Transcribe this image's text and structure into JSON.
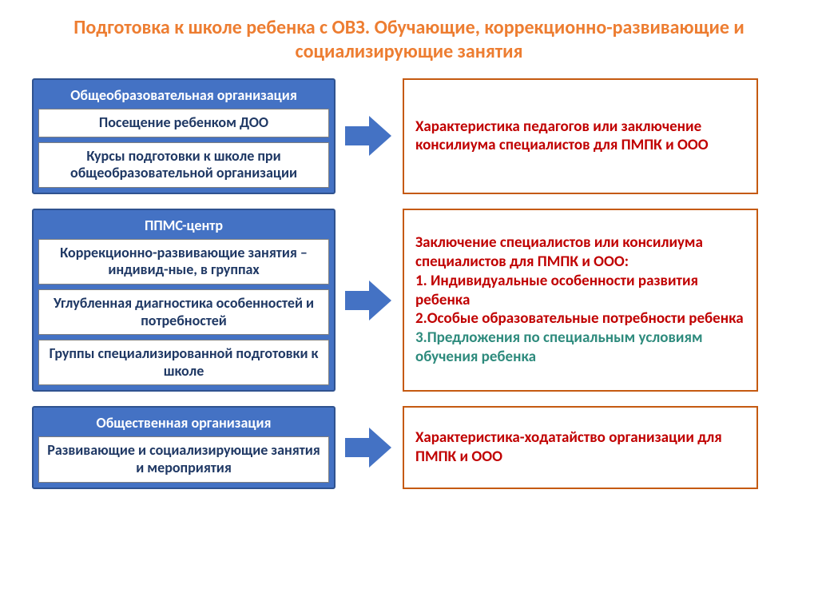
{
  "title": "Подготовка к школе ребенка с ОВЗ. Обучающие, коррекционно-развивающие и социализирующие занятия",
  "title_color": "#ed7d31",
  "title_fontsize": 24,
  "colors": {
    "left_block_bg": "#4472c4",
    "left_block_border": "#2f528f",
    "white_box_text": "#1f3864",
    "arrow_fill": "#4472c4",
    "right_border": "#c55a11",
    "right_text": "#c00000",
    "right_green_text": "#2e8b7d"
  },
  "header_fontsize": 18,
  "box_fontsize": 18,
  "right_fontsize": 19,
  "rows": [
    {
      "header": "Общеобразовательная организация",
      "boxes": [
        "Посещение ребенком ДОО",
        "Курсы подготовки к школе при общеобразовательной организации"
      ],
      "right": {
        "paragraphs": [
          {
            "text": "Характеристика педагогов или заключение консилиума специалистов для ПМПК и ООО",
            "color": "#c00000"
          }
        ]
      }
    },
    {
      "header": "ППМС-центр",
      "boxes": [
        "Коррекционно-развивающие занятия – индивид-ные, в группах",
        "Углубленная диагностика особенностей и потребностей",
        "Группы специализированной подготовки к школе"
      ],
      "right": {
        "paragraphs": [
          {
            "text": "Заключение специалистов или консилиума специалистов для ПМПК и ООО:",
            "color": "#c00000"
          },
          {
            "text": "1. Индивидуальные особенности развития ребенка",
            "color": "#c00000"
          },
          {
            "text": "2.Особые образовательные потребности  ребенка",
            "color": "#c00000"
          },
          {
            "text": "3.Предложения по специальным условиям обучения ребенка",
            "color": "#2e8b7d"
          }
        ]
      }
    },
    {
      "header": "Общественная организация",
      "boxes": [
        "Развивающие и социализирующие занятия и мероприятия"
      ],
      "right": {
        "paragraphs": [
          {
            "text": "Характеристика-ходатайство организации для ПМПК и ООО",
            "color": "#c00000"
          }
        ]
      }
    }
  ]
}
